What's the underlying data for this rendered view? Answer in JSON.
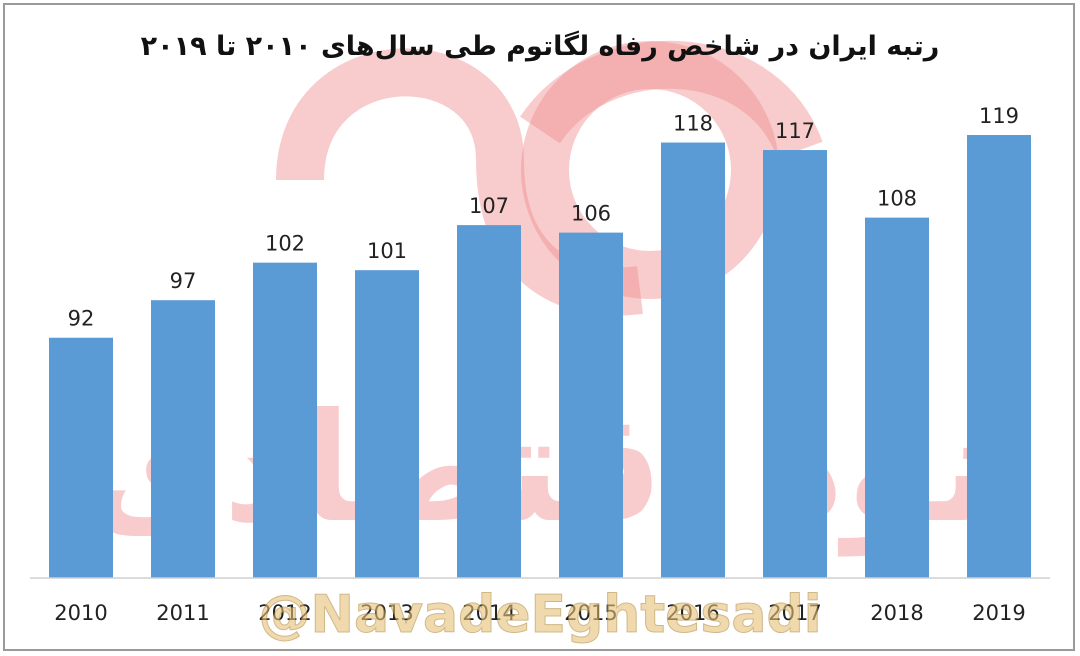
{
  "chart_data": {
    "type": "bar",
    "title": "رتبه ایران در شاخص رفاه لگاتوم طی سال‌های ۲۰۱۰ تا ۲۰۱۹",
    "categories": [
      "2010",
      "2011",
      "2012",
      "2013",
      "2014",
      "2015",
      "2016",
      "2017",
      "2018",
      "2019"
    ],
    "values": [
      92,
      97,
      102,
      101,
      107,
      106,
      118,
      117,
      108,
      119
    ],
    "ylim": [
      60,
      121
    ],
    "xlabel": "",
    "ylabel": "",
    "grid": false,
    "bar_color": "#5b9bd5",
    "data_labels": true
  },
  "watermark": {
    "text": "نود اقتصادی",
    "handle": "@NavadeEghtesadi",
    "color": "#f08d8f"
  }
}
